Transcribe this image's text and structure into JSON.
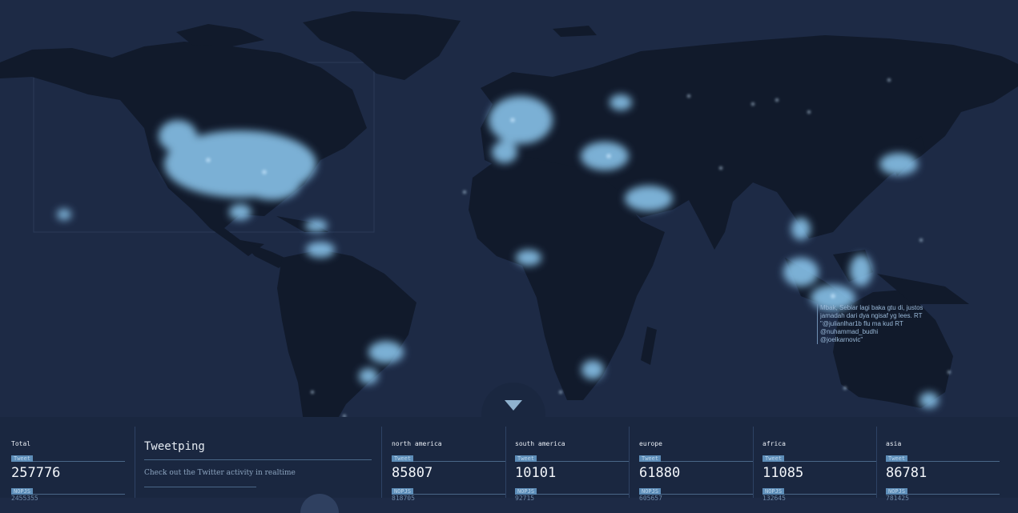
{
  "colors": {
    "ocean": "#1d2a45",
    "land": "#111a2b",
    "glow": "#8ecbf3",
    "panel": "#1a2740",
    "badge": "#5d8db8"
  },
  "tooltip_lines": [
    "Mbak, Sebiar lagi baka gtu di, justos",
    "jamadah dari dya ngisaf yg lees. RT",
    "\"@julianlhar1b flu ma kud RT",
    "@nuhammad_budhi",
    "@joelkarnovic\""
  ],
  "toggle_icon": "triangle-down-icon",
  "stats": {
    "total": {
      "label": "Total",
      "tweet_badge": "Tweet",
      "tweet_count": "257776",
      "second_badge": "NOPJS",
      "second_count": "2455355"
    },
    "north_america": {
      "label": "north america",
      "tweet_badge": "Tweet",
      "tweet_count": "85807",
      "second_badge": "NOPJS",
      "second_count": "818705"
    },
    "south_america": {
      "label": "south america",
      "tweet_badge": "Tweet",
      "tweet_count": "10101",
      "second_badge": "NOPJS",
      "second_count": "92715"
    },
    "europe": {
      "label": "europe",
      "tweet_badge": "Tweet",
      "tweet_count": "61880",
      "second_badge": "NOPJS",
      "second_count": "605657"
    },
    "africa": {
      "label": "africa",
      "tweet_badge": "Tweet",
      "tweet_count": "11085",
      "second_badge": "NOPJS",
      "second_count": "132645"
    },
    "asia": {
      "label": "asia",
      "tweet_badge": "Tweet",
      "tweet_count": "86781",
      "second_badge": "NOPJS",
      "second_count": "781425"
    }
  },
  "brand": {
    "title": "Tweetping",
    "description": "Check out the Twitter activity in realtime"
  }
}
